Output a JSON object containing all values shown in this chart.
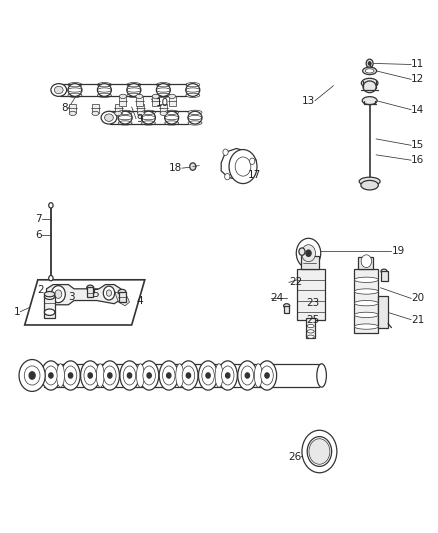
{
  "bg_color": "#ffffff",
  "fig_width": 4.38,
  "fig_height": 5.33,
  "dpi": 100,
  "lc": "#333333",
  "tc": "#222222",
  "fs": 7.5,
  "lw_main": 0.9,
  "lw_thin": 0.5,
  "labels": {
    "1": [
      0.045,
      0.415,
      "right"
    ],
    "2": [
      0.1,
      0.455,
      "right"
    ],
    "3": [
      0.155,
      0.442,
      "left"
    ],
    "4": [
      0.31,
      0.435,
      "left"
    ],
    "5": [
      0.21,
      0.448,
      "left"
    ],
    "6": [
      0.095,
      0.56,
      "right"
    ],
    "7": [
      0.095,
      0.59,
      "right"
    ],
    "8": [
      0.155,
      0.798,
      "right"
    ],
    "9": [
      0.31,
      0.778,
      "left"
    ],
    "10": [
      0.355,
      0.808,
      "left"
    ],
    "11": [
      0.94,
      0.88,
      "left"
    ],
    "12": [
      0.94,
      0.852,
      "left"
    ],
    "13": [
      0.72,
      0.812,
      "right"
    ],
    "14": [
      0.94,
      0.795,
      "left"
    ],
    "15": [
      0.94,
      0.728,
      "left"
    ],
    "16": [
      0.94,
      0.7,
      "left"
    ],
    "17": [
      0.565,
      0.672,
      "left"
    ],
    "18": [
      0.415,
      0.685,
      "right"
    ],
    "19": [
      0.895,
      0.53,
      "left"
    ],
    "20": [
      0.94,
      0.44,
      "left"
    ],
    "21": [
      0.94,
      0.4,
      "left"
    ],
    "22": [
      0.66,
      0.47,
      "left"
    ],
    "23": [
      0.7,
      0.432,
      "left"
    ],
    "24": [
      0.618,
      0.44,
      "left"
    ],
    "25": [
      0.7,
      0.4,
      "left"
    ],
    "26": [
      0.688,
      0.142,
      "right"
    ]
  }
}
